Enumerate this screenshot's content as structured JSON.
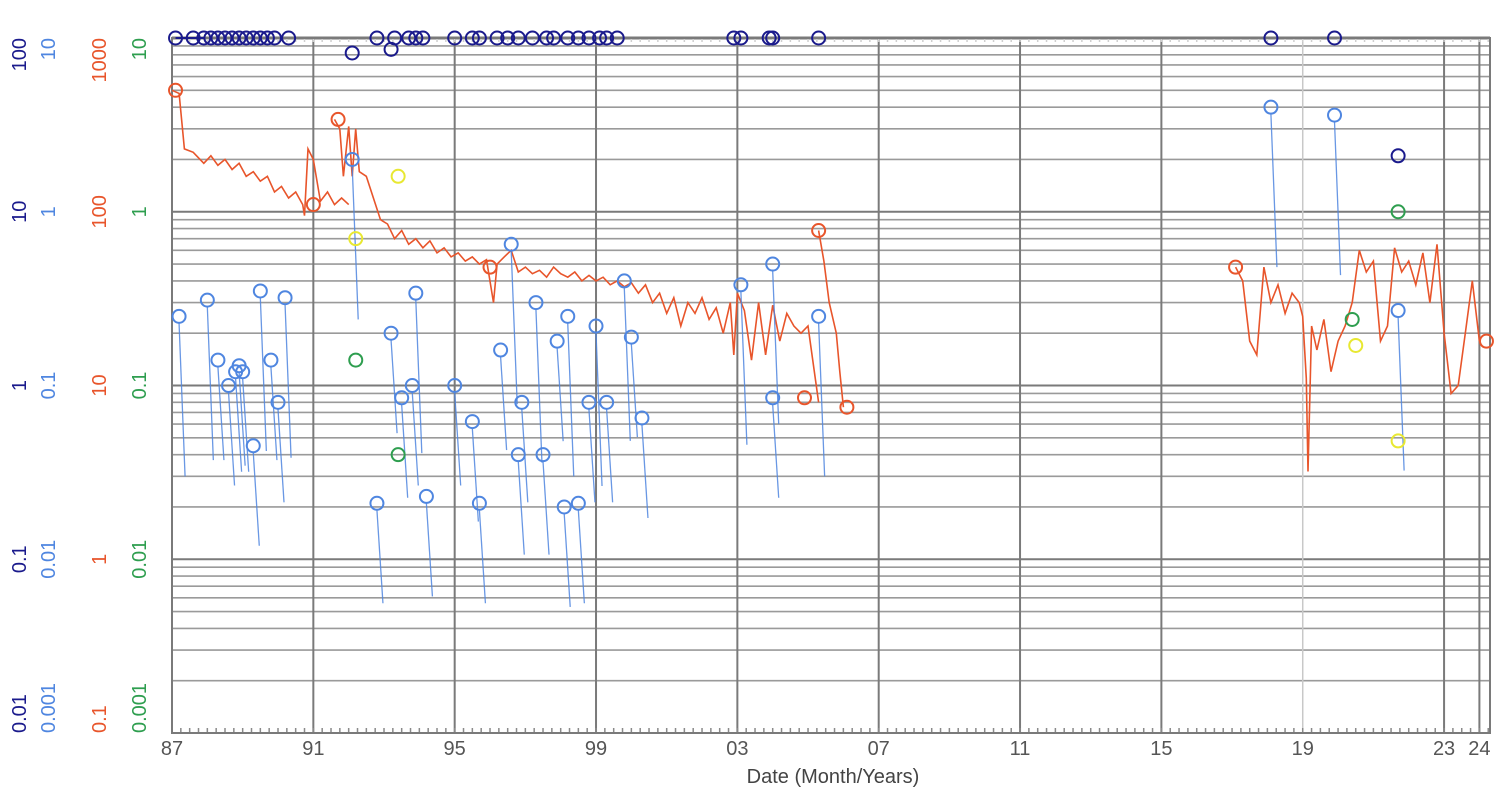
{
  "chart_data": {
    "type": "scatter",
    "title": "",
    "xlabel": "Date (Month/Years)",
    "x_range": [
      1987.0,
      2024.3
    ],
    "x_ticks": [
      {
        "value": 1987.0,
        "label": "87"
      },
      {
        "value": 1991.0,
        "label": "91"
      },
      {
        "value": 1995.0,
        "label": "95"
      },
      {
        "value": 1999.0,
        "label": "99"
      },
      {
        "value": 2003.0,
        "label": "03"
      },
      {
        "value": 2007.0,
        "label": "07"
      },
      {
        "value": 2011.0,
        "label": "11"
      },
      {
        "value": 2015.0,
        "label": "15"
      },
      {
        "value": 2019.0,
        "label": "19"
      },
      {
        "value": 2023.0,
        "label": "23"
      },
      {
        "value": 2024.0,
        "label": "24"
      }
    ],
    "y_scale": "log",
    "grid": true,
    "y_axes": [
      {
        "name": "navy",
        "color": "#1a1a8c",
        "range": [
          0.01,
          100
        ],
        "labels": [
          "100",
          "10",
          "1",
          "0.1",
          "0.01"
        ]
      },
      {
        "name": "blue",
        "color": "#4f86e0",
        "range": [
          0.001,
          10
        ],
        "labels": [
          "10",
          "1",
          "0.1",
          "0.01",
          "0.001"
        ]
      },
      {
        "name": "orange",
        "color": "#e8552b",
        "range": [
          0.1,
          1000
        ],
        "labels": [
          "1000",
          "100",
          "10",
          "1",
          "0.1"
        ]
      },
      {
        "name": "green",
        "color": "#2e9e4f",
        "range": [
          0.001,
          10
        ],
        "labels": [
          "10",
          "1",
          "0.1",
          "0.01",
          "0.001"
        ]
      }
    ],
    "series": [
      {
        "color": "#1a1a8c",
        "axis": "navy",
        "style": "markers+line",
        "connect": [
          1987.1,
          1987.9
        ],
        "points": [
          [
            1987.1,
            100
          ],
          [
            1987.6,
            100
          ],
          [
            1987.9,
            100
          ],
          [
            1988.1,
            100
          ],
          [
            1988.3,
            100
          ],
          [
            1988.5,
            100
          ],
          [
            1988.7,
            100
          ],
          [
            1988.9,
            100
          ],
          [
            1989.1,
            100
          ],
          [
            1989.3,
            100
          ],
          [
            1989.5,
            100
          ],
          [
            1989.7,
            100
          ],
          [
            1989.9,
            100
          ],
          [
            1990.3,
            100
          ],
          [
            1992.8,
            100
          ],
          [
            1993.2,
            86
          ],
          [
            1993.3,
            100
          ],
          [
            1993.7,
            100
          ],
          [
            1993.9,
            100
          ],
          [
            1994.1,
            100
          ],
          [
            1995.0,
            100
          ],
          [
            1995.5,
            100
          ],
          [
            1995.7,
            100
          ],
          [
            1996.2,
            100
          ],
          [
            1996.5,
            100
          ],
          [
            1996.8,
            100
          ],
          [
            1997.2,
            100
          ],
          [
            1997.6,
            100
          ],
          [
            1997.8,
            100
          ],
          [
            1998.2,
            100
          ],
          [
            1998.5,
            100
          ],
          [
            1998.8,
            100
          ],
          [
            1999.1,
            100
          ],
          [
            1999.3,
            100
          ],
          [
            1999.6,
            100
          ],
          [
            2003.1,
            100
          ],
          [
            2003.9,
            100
          ],
          [
            2004.0,
            100
          ],
          [
            2005.3,
            100
          ],
          [
            2018.1,
            100
          ],
          [
            2019.9,
            100
          ],
          [
            2021.7,
            21
          ],
          [
            2002.9,
            100
          ],
          [
            1992.1,
            82
          ]
        ]
      },
      {
        "color": "#e8552b",
        "axis": "orange",
        "style": "line",
        "segments": [
          [
            [
              1987.0,
              500
            ],
            [
              1987.2,
              480
            ],
            [
              1987.35,
              230
            ],
            [
              1987.6,
              220
            ],
            [
              1987.9,
              190
            ],
            [
              1988.1,
              210
            ],
            [
              1988.3,
              185
            ],
            [
              1988.5,
              200
            ],
            [
              1988.7,
              175
            ],
            [
              1988.9,
              190
            ],
            [
              1989.1,
              160
            ],
            [
              1989.3,
              170
            ],
            [
              1989.5,
              150
            ],
            [
              1989.7,
              160
            ],
            [
              1989.9,
              130
            ],
            [
              1990.1,
              140
            ],
            [
              1990.3,
              120
            ],
            [
              1990.5,
              130
            ],
            [
              1990.7,
              110
            ],
            [
              1990.75,
              95
            ],
            [
              1990.85,
              230
            ],
            [
              1991.0,
              200
            ],
            [
              1991.2,
              115
            ],
            [
              1991.4,
              130
            ],
            [
              1991.6,
              110
            ],
            [
              1991.8,
              120
            ],
            [
              1992.0,
              110
            ]
          ],
          [
            [
              1991.6,
              340
            ],
            [
              1991.75,
              300
            ],
            [
              1991.85,
              160
            ],
            [
              1992.0,
              310
            ],
            [
              1992.1,
              160
            ],
            [
              1992.2,
              300
            ],
            [
              1992.3,
              170
            ],
            [
              1992.5,
              160
            ],
            [
              1992.7,
              120
            ],
            [
              1992.9,
              90
            ],
            [
              1993.1,
              85
            ],
            [
              1993.3,
              70
            ],
            [
              1993.5,
              78
            ],
            [
              1993.7,
              65
            ],
            [
              1993.9,
              70
            ],
            [
              1994.1,
              62
            ],
            [
              1994.3,
              68
            ],
            [
              1994.5,
              58
            ],
            [
              1994.7,
              62
            ],
            [
              1994.9,
              55
            ],
            [
              1995.1,
              58
            ],
            [
              1995.3,
              52
            ],
            [
              1995.5,
              55
            ],
            [
              1995.7,
              50
            ],
            [
              1995.9,
              53
            ],
            [
              1996.1,
              30
            ],
            [
              1996.2,
              50
            ],
            [
              1996.4,
              55
            ],
            [
              1996.6,
              60
            ],
            [
              1996.8,
              45
            ],
            [
              1997.0,
              48
            ],
            [
              1997.2,
              44
            ],
            [
              1997.4,
              46
            ],
            [
              1997.6,
              42
            ],
            [
              1997.8,
              48
            ],
            [
              1998.0,
              44
            ],
            [
              1998.2,
              42
            ],
            [
              1998.4,
              45
            ],
            [
              1998.6,
              40
            ],
            [
              1998.8,
              43
            ],
            [
              1999.0,
              40
            ],
            [
              1999.2,
              42
            ],
            [
              1999.4,
              38
            ],
            [
              1999.6,
              40
            ],
            [
              1999.8,
              37
            ],
            [
              2000.0,
              39
            ],
            [
              2000.2,
              34
            ],
            [
              2000.4,
              38
            ],
            [
              2000.6,
              30
            ],
            [
              2000.8,
              34
            ],
            [
              2001.0,
              26
            ],
            [
              2001.2,
              32
            ],
            [
              2001.4,
              22
            ],
            [
              2001.6,
              30
            ],
            [
              2001.8,
              26
            ],
            [
              2002.0,
              32
            ],
            [
              2002.2,
              24
            ],
            [
              2002.4,
              28
            ],
            [
              2002.6,
              20
            ],
            [
              2002.8,
              30
            ],
            [
              2002.9,
              15
            ],
            [
              2003.0,
              34
            ],
            [
              2003.2,
              27
            ],
            [
              2003.4,
              14
            ],
            [
              2003.6,
              30
            ],
            [
              2003.8,
              15
            ],
            [
              2004.0,
              29
            ],
            [
              2004.2,
              18
            ],
            [
              2004.4,
              26
            ],
            [
              2004.6,
              22
            ],
            [
              2004.8,
              20
            ],
            [
              2005.0,
              22
            ],
            [
              2005.3,
              8
            ]
          ],
          [
            [
              2005.3,
              78
            ],
            [
              2005.45,
              52
            ],
            [
              2005.6,
              30
            ],
            [
              2005.8,
              20
            ],
            [
              2005.9,
              12
            ],
            [
              2006.0,
              7.5
            ]
          ],
          [
            [
              2017.1,
              48
            ],
            [
              2017.3,
              40
            ],
            [
              2017.5,
              18
            ],
            [
              2017.7,
              15
            ],
            [
              2017.9,
              48
            ],
            [
              2018.1,
              30
            ],
            [
              2018.3,
              38
            ],
            [
              2018.5,
              26
            ],
            [
              2018.7,
              34
            ],
            [
              2018.9,
              30
            ],
            [
              2019.0,
              25
            ],
            [
              2019.1,
              11
            ],
            [
              2019.15,
              3.2
            ],
            [
              2019.25,
              22
            ],
            [
              2019.4,
              16
            ],
            [
              2019.6,
              24
            ],
            [
              2019.8,
              12
            ],
            [
              2020.0,
              18
            ],
            [
              2020.2,
              22
            ],
            [
              2020.4,
              30
            ],
            [
              2020.6,
              60
            ],
            [
              2020.8,
              45
            ],
            [
              2021.0,
              52
            ],
            [
              2021.2,
              18
            ],
            [
              2021.4,
              22
            ],
            [
              2021.6,
              62
            ],
            [
              2021.8,
              45
            ],
            [
              2022.0,
              52
            ],
            [
              2022.2,
              38
            ],
            [
              2022.4,
              58
            ],
            [
              2022.6,
              30
            ],
            [
              2022.8,
              65
            ],
            [
              2023.0,
              20
            ],
            [
              2023.2,
              9
            ],
            [
              2023.4,
              10
            ],
            [
              2023.6,
              20
            ],
            [
              2023.8,
              40
            ],
            [
              2024.0,
              18
            ]
          ]
        ],
        "points": [
          [
            1987.1,
            500
          ],
          [
            1991.0,
            110
          ],
          [
            1991.7,
            340
          ],
          [
            1996.0,
            48
          ],
          [
            2005.3,
            78
          ],
          [
            2006.1,
            7.5
          ],
          [
            2017.1,
            48
          ],
          [
            2024.2,
            18
          ],
          [
            2004.9,
            8.5
          ]
        ]
      },
      {
        "color": "#4f86e0",
        "axis": "blue",
        "style": "markers+drops",
        "points": [
          [
            1987.2,
            0.25
          ],
          [
            1988.0,
            0.31
          ],
          [
            1988.3,
            0.14
          ],
          [
            1988.6,
            0.1
          ],
          [
            1988.8,
            0.12
          ],
          [
            1989.3,
            0.045
          ],
          [
            1989.5,
            0.35
          ],
          [
            1989.8,
            0.14
          ],
          [
            1990.2,
            0.32
          ],
          [
            1990.0,
            0.08
          ],
          [
            1992.1,
            2.0
          ],
          [
            1993.2,
            0.2
          ],
          [
            1993.5,
            0.085
          ],
          [
            1993.8,
            0.1
          ],
          [
            1993.9,
            0.34
          ],
          [
            1994.2,
            0.023
          ],
          [
            1992.8,
            0.021
          ],
          [
            1995.0,
            0.1
          ],
          [
            1995.5,
            0.062
          ],
          [
            1995.7,
            0.021
          ],
          [
            1996.3,
            0.16
          ],
          [
            1996.6,
            0.65
          ],
          [
            1996.8,
            0.04
          ],
          [
            1996.9,
            0.08
          ],
          [
            1997.3,
            0.3
          ],
          [
            1997.5,
            0.04
          ],
          [
            1997.9,
            0.18
          ],
          [
            1998.1,
            0.02
          ],
          [
            1998.2,
            0.25
          ],
          [
            1998.5,
            0.021
          ],
          [
            1998.8,
            0.08
          ],
          [
            1999.0,
            0.22
          ],
          [
            1999.3,
            0.08
          ],
          [
            1999.8,
            0.4
          ],
          [
            2000.0,
            0.19
          ],
          [
            2000.3,
            0.065
          ],
          [
            2003.1,
            0.38
          ],
          [
            2004.0,
            0.5
          ],
          [
            2004.0,
            0.085
          ],
          [
            2005.3,
            0.25
          ],
          [
            2018.1,
            4.0
          ],
          [
            2019.9,
            3.6
          ],
          [
            2021.7,
            0.27
          ],
          [
            1988.9,
            0.13
          ],
          [
            1989.0,
            0.12
          ]
        ]
      },
      {
        "color": "#2e9e4f",
        "axis": "green",
        "style": "markers",
        "points": [
          [
            1992.2,
            0.14
          ],
          [
            1993.4,
            0.04
          ],
          [
            2020.4,
            0.24
          ],
          [
            2021.7,
            1.0
          ]
        ]
      },
      {
        "color": "#e8e832",
        "axis": "blue",
        "style": "markers",
        "points": [
          [
            1992.2,
            0.7
          ],
          [
            1993.4,
            1.6
          ],
          [
            2020.5,
            0.17
          ],
          [
            2021.7,
            0.048
          ]
        ]
      }
    ]
  }
}
